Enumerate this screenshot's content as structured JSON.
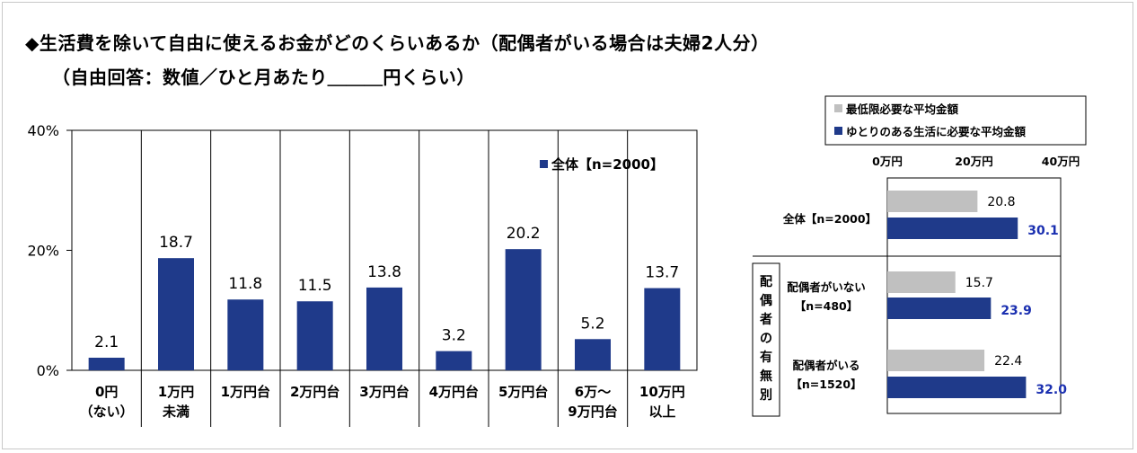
{
  "header": {
    "title": "◆生活費を除いて自由に使えるお金がどのくらいあるか（配偶者がいる場合は夫婦2人分）",
    "subtitle": "（自由回答：数値／ひと月あたり＿＿＿円くらい）"
  },
  "chart_data": [
    {
      "type": "bar",
      "categories": [
        [
          "0円",
          "（ない）"
        ],
        [
          "1万円",
          "未満"
        ],
        [
          "1万円台"
        ],
        [
          "2万円台"
        ],
        [
          "3万円台"
        ],
        [
          "4万円台"
        ],
        [
          "5万円台"
        ],
        [
          "6万〜",
          "9万円台"
        ],
        [
          "10万円",
          "以上"
        ]
      ],
      "series": [
        {
          "name": "全体【n=2000】",
          "values": [
            2.1,
            18.7,
            11.8,
            11.5,
            13.8,
            3.2,
            20.2,
            5.2,
            13.7
          ],
          "color": "#1f3a8a"
        }
      ],
      "value_labels": [
        "2.1",
        "18.7",
        "11.8",
        "11.5",
        "13.8",
        "3.2",
        "20.2",
        "5.2",
        "13.7"
      ],
      "yticks": [
        "0%",
        "20%",
        "40%"
      ],
      "ylim": [
        0,
        40
      ],
      "legend_position": "top-right",
      "grid": false
    },
    {
      "type": "bar",
      "orientation": "horizontal",
      "legend": [
        {
          "name": "最低限必要な平均金額",
          "color": "#c0c0c0"
        },
        {
          "name": "ゆとりのある生活に必要な平均金額",
          "color": "#1f3a8a"
        }
      ],
      "xticks": [
        "0万円",
        "20万円",
        "40万円"
      ],
      "xlim": [
        0,
        40
      ],
      "group_label": "配偶者の有無別",
      "categories": [
        [
          "全体【n=2000】"
        ],
        [
          "配偶者がいない",
          "【n=480】"
        ],
        [
          "配偶者がいる",
          "【n=1520】"
        ]
      ],
      "series": [
        {
          "name": "最低限必要な平均金額",
          "values": [
            20.8,
            15.7,
            22.4
          ],
          "labels": [
            "20.8",
            "15.7",
            "22.4"
          ],
          "color": "#c0c0c0",
          "label_color": "#000000"
        },
        {
          "name": "ゆとりのある生活に必要な平均金額",
          "values": [
            30.1,
            23.9,
            32.0
          ],
          "labels": [
            "30.1",
            "23.9",
            "32.0"
          ],
          "color": "#1f3a8a",
          "label_color": "#1a2fb0"
        }
      ]
    }
  ]
}
